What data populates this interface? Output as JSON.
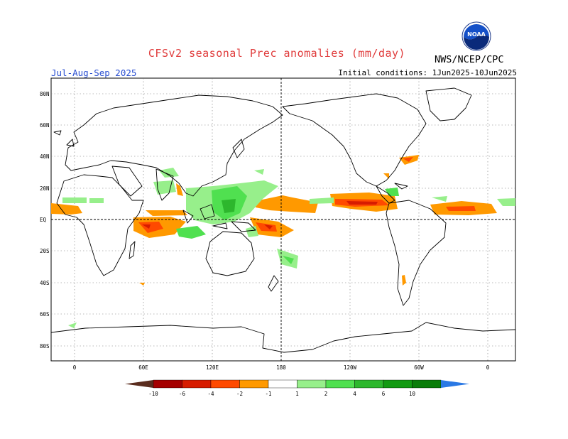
{
  "header": {
    "title": "CFSv2 seasonal Prec anomalies (mm/day)",
    "period": "Jul-Aug-Sep 2025",
    "initial_conditions": "Initial conditions: 1Jun2025-10Jun2025",
    "agency": "NWS/NCEP/CPC",
    "logo_text": "NOAA"
  },
  "axes": {
    "lat_labels": [
      "80N",
      "60N",
      "40N",
      "20N",
      "EQ",
      "20S",
      "40S",
      "60S",
      "80S"
    ],
    "lon_labels": [
      "0",
      "60E",
      "120E",
      "180",
      "120W",
      "60W",
      "0"
    ]
  },
  "legend": {
    "values": [
      "-10",
      "-6",
      "-4",
      "-2",
      "-1",
      "1",
      "2",
      "4",
      "6",
      "10"
    ],
    "colors": [
      "#5a2d1e",
      "#a50000",
      "#d71c00",
      "#ff4a00",
      "#ff9900",
      "#ffffff",
      "#97ef8b",
      "#50e050",
      "#2db72d",
      "#129a12",
      "#0a7d0a",
      "#2a78e4"
    ]
  },
  "colors": {
    "title": "#e03c3c",
    "period": "#2a4fd0",
    "dry_light": "#ff9900",
    "dry_mid": "#ff4a00",
    "dry_strong": "#d71c00",
    "wet_light": "#97ef8b",
    "wet_mid": "#50e050",
    "wet_strong": "#2db72d"
  }
}
